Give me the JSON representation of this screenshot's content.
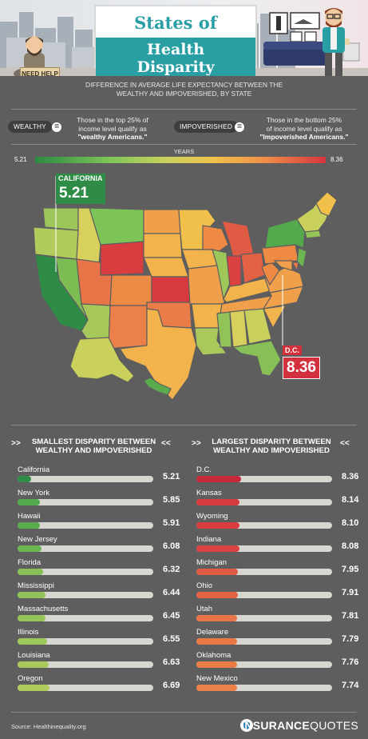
{
  "header": {
    "title_line1": "States of",
    "title_line2": "Health Disparity",
    "sign_text": "NEED HELP"
  },
  "subtitle": "DIFFERENCE IN AVERAGE LIFE EXPECTANCY BETWEEN THE WEALTHY AND IMPOVERISHED, BY STATE",
  "legend": {
    "wealthy_label": "WEALTHY",
    "wealthy_def_line1": "Those in the top 25% of",
    "wealthy_def_line2": "income level qualify as",
    "wealthy_def_bold": "\"wealthy Americans.\"",
    "impoverished_label": "IMPOVERISHED",
    "impoverished_def_line1": "Those in the bottom 25%",
    "impoverished_def_line2": "of income level qualify as",
    "impoverished_def_bold": "\"Impoverished Americans.\"",
    "equals_glyph": "="
  },
  "scale": {
    "label": "YEARS",
    "min": "5.21",
    "max": "8.36",
    "min_color": "#2b8a43",
    "max_color": "#d6353f"
  },
  "callouts": {
    "california_label": "CALIFORNIA",
    "california_value": "5.21",
    "dc_label": "D.C.",
    "dc_value": "8.36"
  },
  "smallest": {
    "heading_line1": "SMALLEST DISPARITY BETWEEN",
    "heading_line2": "WEALTHY AND IMPOVERISHED",
    "chev_left": ">>",
    "chev_right": "<<",
    "rows": [
      {
        "name": "California",
        "value": "5.21",
        "fill": 0.05,
        "color": "#2f8c47"
      },
      {
        "name": "New York",
        "value": "5.85",
        "fill": 0.12,
        "color": "#55a94d"
      },
      {
        "name": "Hawaii",
        "value": "5.91",
        "fill": 0.12,
        "color": "#5aab4e"
      },
      {
        "name": "New Jersey",
        "value": "6.08",
        "fill": 0.13,
        "color": "#6db552"
      },
      {
        "name": "Florida",
        "value": "6.32",
        "fill": 0.14,
        "color": "#86c056"
      },
      {
        "name": "Mississippi",
        "value": "6.44",
        "fill": 0.16,
        "color": "#92c358"
      },
      {
        "name": "Massachusetts",
        "value": "6.45",
        "fill": 0.16,
        "color": "#95c459"
      },
      {
        "name": "Illinois",
        "value": "6.55",
        "fill": 0.17,
        "color": "#9ec75a"
      },
      {
        "name": "Louisiana",
        "value": "6.63",
        "fill": 0.18,
        "color": "#a9ca5b"
      },
      {
        "name": "Oregon",
        "value": "6.69",
        "fill": 0.19,
        "color": "#b1cc5c"
      }
    ]
  },
  "largest": {
    "heading_line1": "LARGEST DISPARITY BETWEEN",
    "heading_line2": "WEALTHY AND IMPOVERISHED",
    "chev_left": ">>",
    "chev_right": "<<",
    "rows": [
      {
        "name": "D.C.",
        "value": "8.36",
        "fill": 0.28,
        "color": "#c62a3a"
      },
      {
        "name": "Kansas",
        "value": "8.14",
        "fill": 0.27,
        "color": "#d7393f"
      },
      {
        "name": "Wyoming",
        "value": "8.10",
        "fill": 0.27,
        "color": "#d93d40"
      },
      {
        "name": "Indiana",
        "value": "8.08",
        "fill": 0.27,
        "color": "#db4141"
      },
      {
        "name": "Michigan",
        "value": "7.95",
        "fill": 0.26,
        "color": "#e05a44"
      },
      {
        "name": "Ohio",
        "value": "7.91",
        "fill": 0.26,
        "color": "#e36245"
      },
      {
        "name": "Utah",
        "value": "7.81",
        "fill": 0.25,
        "color": "#e87447"
      },
      {
        "name": "Delaware",
        "value": "7.79",
        "fill": 0.25,
        "color": "#e97847"
      },
      {
        "name": "Oklahoma",
        "value": "7.76",
        "fill": 0.25,
        "color": "#ea7c48"
      },
      {
        "name": "New Mexico",
        "value": "7.74",
        "fill": 0.25,
        "color": "#ec8049"
      }
    ]
  },
  "footer": {
    "source": "Source: Healthinequality.org",
    "brand_part1": "INSURANCE",
    "brand_part2": "QUOTES",
    "brand_icon": "shield-icon"
  }
}
